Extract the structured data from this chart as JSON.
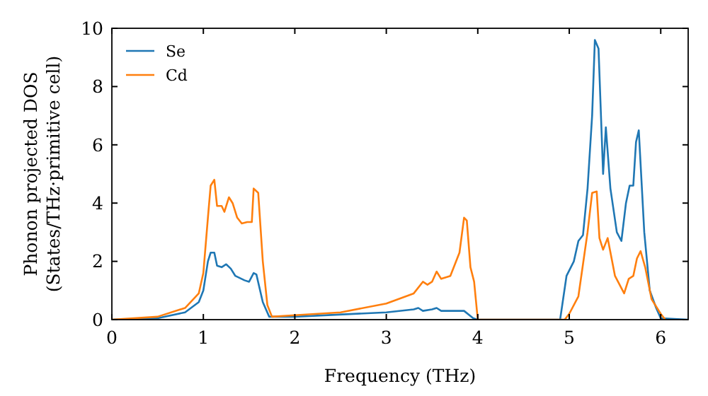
{
  "chart_data": {
    "type": "line",
    "xlabel": "Frequency (THz)",
    "ylabel": "Phonon projected DOS\n(States/THz·primitive cell)",
    "xlim": [
      0,
      6.3
    ],
    "xticks": [
      0,
      1,
      2,
      3,
      4,
      5,
      6
    ],
    "ylim": [
      0,
      10
    ],
    "yticks": [
      0,
      2,
      4,
      6,
      8,
      10
    ],
    "legend": "top left",
    "grid": false,
    "series": [
      {
        "name": "Se",
        "color": "#1f77b4",
        "x": [
          0,
          0.5,
          0.8,
          0.95,
          1.0,
          1.05,
          1.08,
          1.12,
          1.15,
          1.2,
          1.25,
          1.3,
          1.35,
          1.45,
          1.5,
          1.55,
          1.58,
          1.65,
          1.72,
          2.0,
          3.0,
          3.3,
          3.35,
          3.4,
          3.5,
          3.55,
          3.6,
          3.85,
          3.95,
          4.0,
          4.9,
          4.97,
          5.05,
          5.1,
          5.15,
          5.2,
          5.25,
          5.28,
          5.32,
          5.37,
          5.4,
          5.45,
          5.52,
          5.57,
          5.62,
          5.66,
          5.7,
          5.73,
          5.76,
          5.82,
          5.88,
          5.95,
          6.0,
          6.3
        ],
        "values": [
          0,
          0.05,
          0.25,
          0.6,
          1.0,
          2.0,
          2.3,
          2.3,
          1.85,
          1.8,
          1.9,
          1.75,
          1.5,
          1.35,
          1.3,
          1.6,
          1.55,
          0.6,
          0.1,
          0.1,
          0.25,
          0.35,
          0.4,
          0.3,
          0.35,
          0.4,
          0.3,
          0.3,
          0.05,
          0,
          0,
          1.5,
          2.0,
          2.7,
          2.9,
          4.5,
          7,
          9.6,
          9.3,
          5.0,
          6.6,
          4.5,
          3.0,
          2.7,
          4.0,
          4.6,
          4.6,
          6.1,
          6.5,
          3.0,
          1.0,
          0.4,
          0.05,
          0
        ]
      },
      {
        "name": "Cd",
        "color": "#ff7f0e",
        "x": [
          0,
          0.5,
          0.8,
          0.95,
          1.0,
          1.05,
          1.08,
          1.12,
          1.15,
          1.2,
          1.23,
          1.28,
          1.32,
          1.37,
          1.42,
          1.48,
          1.53,
          1.55,
          1.6,
          1.65,
          1.7,
          1.75,
          2.0,
          2.5,
          3.0,
          3.3,
          3.4,
          3.45,
          3.5,
          3.55,
          3.6,
          3.7,
          3.8,
          3.85,
          3.88,
          3.92,
          3.96,
          4.0,
          4.95,
          5.0,
          5.1,
          5.15,
          5.2,
          5.25,
          5.3,
          5.33,
          5.37,
          5.42,
          5.5,
          5.6,
          5.65,
          5.7,
          5.74,
          5.78,
          5.83,
          5.9,
          6.0,
          6.05
        ],
        "values": [
          0,
          0.1,
          0.4,
          0.9,
          1.6,
          3.5,
          4.6,
          4.8,
          3.9,
          3.9,
          3.7,
          4.2,
          4.0,
          3.5,
          3.3,
          3.35,
          3.35,
          4.5,
          4.35,
          2.0,
          0.5,
          0.1,
          0.15,
          0.25,
          0.55,
          0.9,
          1.3,
          1.2,
          1.3,
          1.65,
          1.4,
          1.5,
          2.3,
          3.5,
          3.4,
          1.8,
          1.3,
          0,
          0,
          0.2,
          0.8,
          1.9,
          3.0,
          4.35,
          4.4,
          2.8,
          2.4,
          2.8,
          1.5,
          0.9,
          1.4,
          1.5,
          2.1,
          2.35,
          1.8,
          0.7,
          0.2,
          0
        ]
      }
    ]
  }
}
